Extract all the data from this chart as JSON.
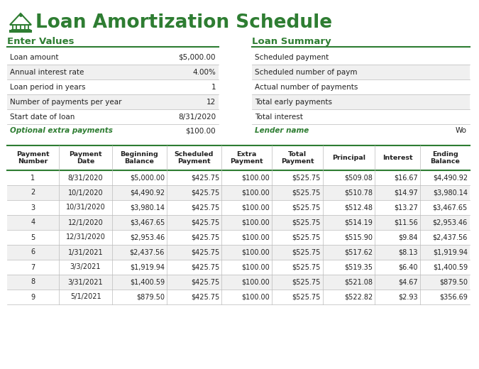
{
  "title": "Loan Amortization Schedule",
  "background_color": "#FFFFFF",
  "enter_values_header": "Enter Values",
  "loan_summary_header": "Loan Summary",
  "enter_values_rows": [
    [
      "Loan amount",
      "$5,000.00"
    ],
    [
      "Annual interest rate",
      "4.00%"
    ],
    [
      "Loan period in years",
      "1"
    ],
    [
      "Number of payments per year",
      "12"
    ],
    [
      "Start date of loan",
      "8/31/2020"
    ]
  ],
  "optional_extra_label": "Optional extra payments",
  "optional_extra_value": "$100.00",
  "loan_summary_rows": [
    [
      "Scheduled payment",
      ""
    ],
    [
      "Scheduled number of paym",
      ""
    ],
    [
      "Actual number of payments",
      ""
    ],
    [
      "Total early payments",
      ""
    ],
    [
      "Total interest",
      ""
    ]
  ],
  "lender_label": "Lender name",
  "lender_value": "Wo",
  "table_headers": [
    "Payment\nNumber",
    "Payment\nDate",
    "Beginning\nBalance",
    "Scheduled\nPayment",
    "Extra\nPayment",
    "Total\nPayment",
    "Principal",
    "Interest",
    "Ending\nBalance"
  ],
  "table_data": [
    [
      "1",
      "8/31/2020",
      "$5,000.00",
      "$425.75",
      "$100.00",
      "$525.75",
      "$509.08",
      "$16.67",
      "$4,490.92"
    ],
    [
      "2",
      "10/1/2020",
      "$4,490.92",
      "$425.75",
      "$100.00",
      "$525.75",
      "$510.78",
      "$14.97",
      "$3,980.14"
    ],
    [
      "3",
      "10/31/2020",
      "$3,980.14",
      "$425.75",
      "$100.00",
      "$525.75",
      "$512.48",
      "$13.27",
      "$3,467.65"
    ],
    [
      "4",
      "12/1/2020",
      "$3,467.65",
      "$425.75",
      "$100.00",
      "$525.75",
      "$514.19",
      "$11.56",
      "$2,953.46"
    ],
    [
      "5",
      "12/31/2020",
      "$2,953.46",
      "$425.75",
      "$100.00",
      "$525.75",
      "$515.90",
      "$9.84",
      "$2,437.56"
    ],
    [
      "6",
      "1/31/2021",
      "$2,437.56",
      "$425.75",
      "$100.00",
      "$525.75",
      "$517.62",
      "$8.13",
      "$1,919.94"
    ],
    [
      "7",
      "3/3/2021",
      "$1,919.94",
      "$425.75",
      "$100.00",
      "$525.75",
      "$519.35",
      "$6.40",
      "$1,400.59"
    ],
    [
      "8",
      "3/31/2021",
      "$1,400.59",
      "$425.75",
      "$100.00",
      "$525.75",
      "$521.08",
      "$4.67",
      "$879.50"
    ],
    [
      "9",
      "5/1/2021",
      "$879.50",
      "$425.75",
      "$100.00",
      "$525.75",
      "$522.82",
      "$2.93",
      "$356.69"
    ]
  ],
  "green_dark": "#2E7D32",
  "row_alt_bg": "#F0F0F0",
  "row_bg": "#FFFFFF",
  "border_color": "#BBBBBB",
  "text_color": "#222222",
  "col_boundaries": [
    10,
    83,
    158,
    235,
    312,
    383,
    455,
    528,
    592,
    662
  ]
}
